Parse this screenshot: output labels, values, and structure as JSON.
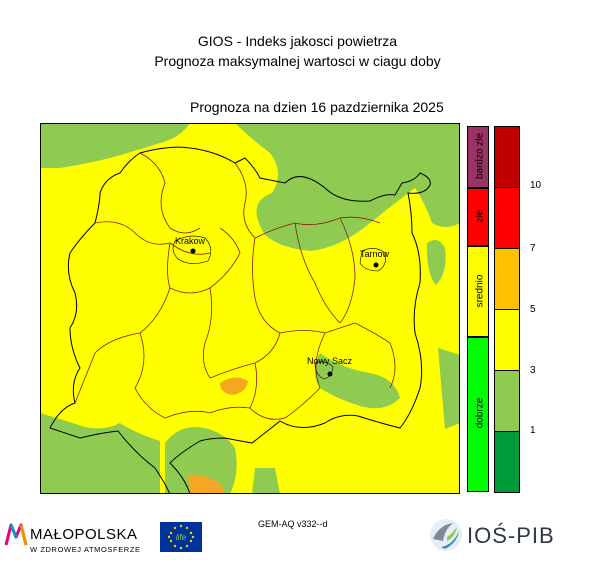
{
  "header": {
    "title_line1": "GIOS - Indeks jakosci powietrza",
    "title_line2": "Prognoza maksymalnej wartosci w ciagu doby",
    "date_line": "Prognoza na dzien  16 pazdziernika 2025"
  },
  "map": {
    "colors": {
      "green": "#8fcb50",
      "yellow": "#ffff00",
      "orange": "#f5a623",
      "borders": "#000000",
      "districts": "#8b1a1a"
    },
    "cities": [
      {
        "name": "Krakow"
      },
      {
        "name": "Tarnow"
      },
      {
        "name": "Nowy Sacz"
      }
    ]
  },
  "legend": {
    "quality_levels": [
      {
        "label": "bardzo złe",
        "color": "#993366"
      },
      {
        "label": "złe",
        "color": "#ff0000"
      },
      {
        "label": "srednio",
        "color": "#ffff00"
      },
      {
        "label": "dobrze",
        "color": "#00ff00"
      }
    ],
    "scale_colors": [
      "#009b3a",
      "#8fcb50",
      "#ffff00",
      "#ffc000",
      "#ff0000",
      "#c00000"
    ],
    "scale_ticks": [
      "1",
      "3",
      "5",
      "7",
      "10"
    ]
  },
  "footer": {
    "model": "GEM-AQ v332--d",
    "malopolska_name": "MAŁOPOLSKA",
    "malopolska_tagline": "W ZDROWEJ ATMOSFERZE",
    "eu_logo_text": "life",
    "ios_name": "IOŚ-PIB"
  }
}
